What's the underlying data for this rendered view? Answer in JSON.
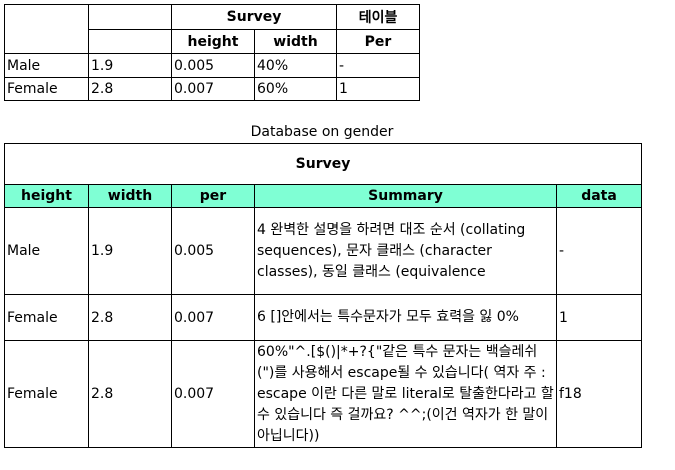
{
  "table1": {
    "group1_header": "Survey",
    "group2_header": "테이블",
    "subheaders": [
      "height",
      "width",
      "Per"
    ],
    "rows": [
      [
        "Male",
        "1.9",
        "0.005",
        "40%",
        "-"
      ],
      [
        "Female",
        "2.8",
        "0.007",
        "60%",
        "1"
      ]
    ]
  },
  "caption2": "Database on gender",
  "table2": {
    "title": "Survey",
    "headers": [
      "height",
      "width",
      "per",
      "Summary",
      "data"
    ],
    "rows": [
      [
        "Male",
        "1.9",
        "0.005",
        "4 완벽한 설명을 하려면 대조 순서 (collating sequences), 문자 클래스 (character classes), 동일 클래스 (equivalence",
        "-"
      ],
      [
        "Female",
        "2.8",
        "0.007",
        "6 []안에서는 특수문자가 모두 효력을 잃 0%",
        "1"
      ],
      [
        "Female",
        "2.8",
        "0.007",
        "60%\"^.[$()|*+?{\"같은 특수 문자는 백슬레쉬(\")를 사용해서 escape될 수 있습니다( 역자 주 : escape 이란 다른 말로 literal로 탈출한다라고 할 수 있습니다 즉 걸까요? ^^;(이건 역자가 한 말이 아닙니다))",
        "f18"
      ]
    ]
  }
}
